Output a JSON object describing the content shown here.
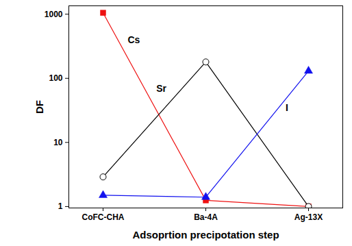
{
  "chart_data": {
    "type": "line",
    "x_label": "Adsoprtion precipotation step",
    "y_label": "DF",
    "categories": [
      "CoFC-CHA",
      "Ba-4A",
      "Ag-13X"
    ],
    "log": "y",
    "grid": false,
    "ylim": [
      0.95,
      1350
    ],
    "yticks": [
      1,
      10,
      100,
      1000
    ],
    "series": [
      {
        "name": "Cs",
        "color": "#ee1111",
        "marker": "square",
        "values": [
          1050,
          1.25,
          1.0
        ]
      },
      {
        "name": "Sr",
        "color": "#000000",
        "marker": "circle-open",
        "values": [
          2.9,
          180,
          1.0
        ]
      },
      {
        "name": "I",
        "color": "#1111ee",
        "marker": "triangle",
        "values": [
          1.5,
          1.4,
          130
        ]
      }
    ]
  }
}
